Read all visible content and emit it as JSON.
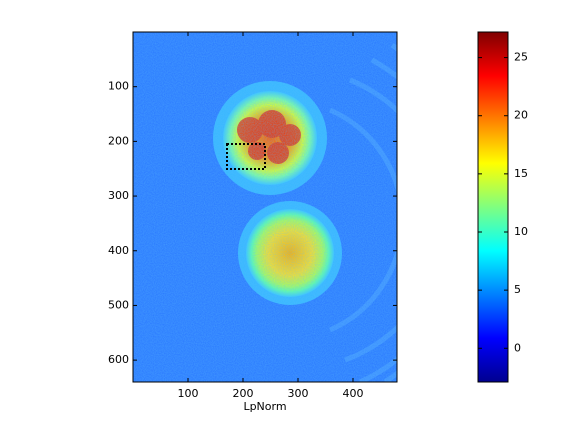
{
  "chart_data": {
    "type": "image",
    "xlabel": "LpNorm",
    "xlim": [
      0,
      480
    ],
    "ylim": [
      0,
      640
    ],
    "y_reversed": true,
    "xticks": [
      100,
      200,
      300,
      400
    ],
    "yticks": [
      100,
      200,
      300,
      400,
      500,
      600
    ],
    "colorbar": {
      "clim": [
        -2.9,
        27.2
      ],
      "ticks": [
        0,
        5,
        10,
        15,
        20,
        25
      ],
      "colormap": "jet"
    }
  }
}
